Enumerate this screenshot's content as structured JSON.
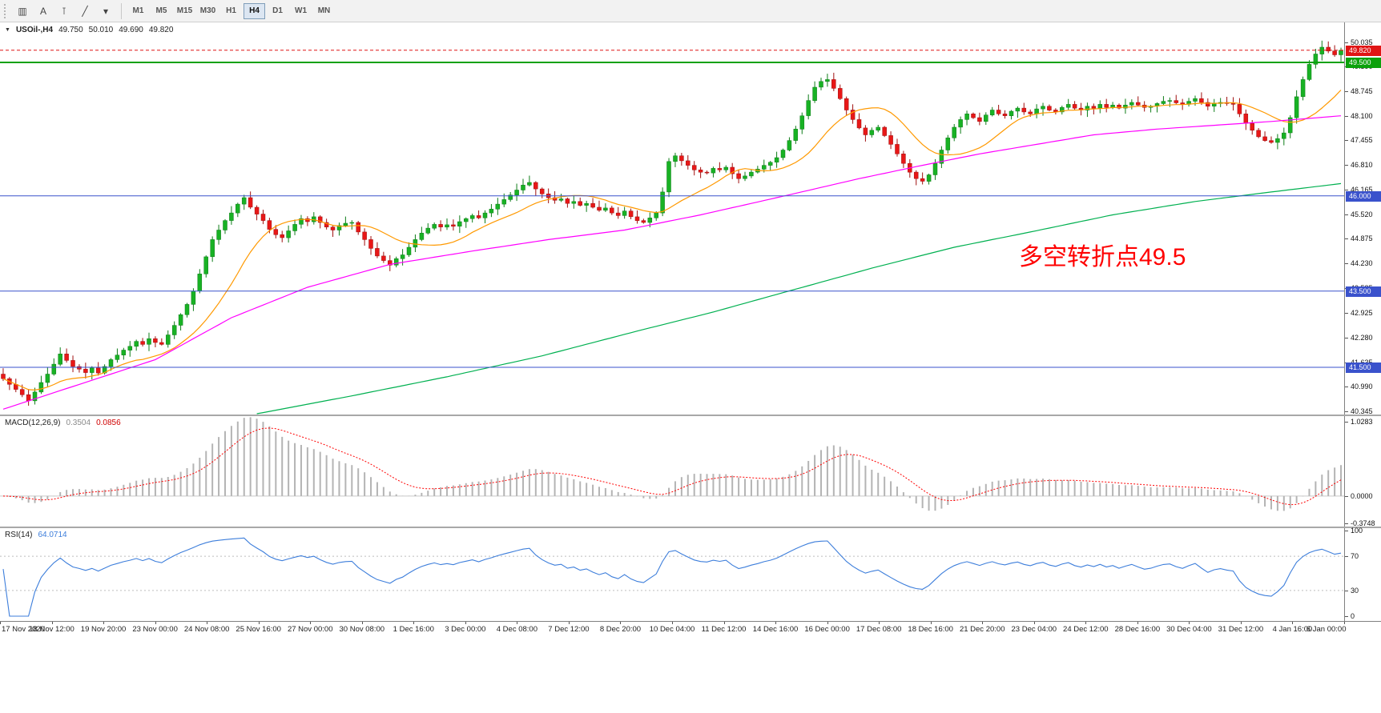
{
  "toolbar": {
    "tools": [
      {
        "name": "chart-window-button",
        "glyph": "▥"
      },
      {
        "name": "text-label-tool-button",
        "glyph": "A"
      },
      {
        "name": "vertical-line-tool-button",
        "glyph": "⊺"
      },
      {
        "name": "trendline-tool-button",
        "glyph": "╱"
      },
      {
        "name": "drawing-tools-dropdown-button",
        "glyph": "▾"
      }
    ],
    "timeframes": [
      {
        "label": "M1",
        "active": false
      },
      {
        "label": "M5",
        "active": false
      },
      {
        "label": "M15",
        "active": false
      },
      {
        "label": "M30",
        "active": false
      },
      {
        "label": "H1",
        "active": false
      },
      {
        "label": "H4",
        "active": true
      },
      {
        "label": "D1",
        "active": false
      },
      {
        "label": "W1",
        "active": false
      },
      {
        "label": "MN",
        "active": false
      }
    ]
  },
  "main_chart": {
    "dropdown_glyph": "▼",
    "symbol_label": "USOil-,H4",
    "ohlc": {
      "open": "49.750",
      "high": "50.010",
      "low": "49.690",
      "close": "49.820"
    },
    "annotation": {
      "text": "多空转折点49.5",
      "color": "#ff0000"
    },
    "current_price": {
      "value": "49.820",
      "color": "#e01515"
    }
  },
  "chart_data": {
    "type": "candlestick",
    "symbol": "USOil",
    "timeframe": "H4",
    "title": "USOil-,H4 49.750 50.010 49.690 49.820",
    "closes": [
      41.2,
      41.05,
      40.92,
      40.78,
      40.62,
      40.85,
      41.1,
      41.32,
      41.58,
      41.85,
      41.68,
      41.52,
      41.45,
      41.36,
      41.48,
      41.35,
      41.52,
      41.7,
      41.82,
      41.95,
      42.05,
      42.18,
      42.1,
      42.25,
      42.15,
      42.1,
      42.35,
      42.6,
      42.88,
      43.15,
      43.5,
      43.95,
      44.4,
      44.85,
      45.1,
      45.35,
      45.55,
      45.78,
      45.95,
      45.7,
      45.52,
      45.35,
      45.12,
      44.98,
      44.9,
      45.08,
      45.25,
      45.4,
      45.32,
      45.45,
      45.3,
      45.18,
      45.1,
      45.22,
      45.28,
      45.3,
      45.05,
      44.85,
      44.62,
      44.42,
      44.3,
      44.18,
      44.35,
      44.45,
      44.65,
      44.85,
      45.02,
      45.15,
      45.25,
      45.18,
      45.24,
      45.2,
      45.32,
      45.4,
      45.48,
      45.42,
      45.55,
      45.65,
      45.78,
      45.9,
      46.02,
      46.15,
      46.28,
      46.35,
      46.18,
      46.05,
      45.95,
      45.88,
      45.92,
      45.8,
      45.85,
      45.75,
      45.8,
      45.7,
      45.62,
      45.68,
      45.55,
      45.48,
      45.6,
      45.45,
      45.35,
      45.3,
      45.42,
      45.55,
      46.1,
      46.9,
      47.05,
      46.92,
      46.8,
      46.68,
      46.62,
      46.6,
      46.72,
      46.68,
      46.75,
      46.58,
      46.45,
      46.52,
      46.62,
      46.7,
      46.8,
      46.88,
      47.0,
      47.2,
      47.45,
      47.75,
      48.1,
      48.5,
      48.85,
      49.0,
      49.05,
      48.82,
      48.55,
      48.25,
      48.0,
      47.78,
      47.6,
      47.72,
      47.8,
      47.58,
      47.35,
      47.1,
      46.85,
      46.62,
      46.45,
      46.38,
      46.55,
      46.85,
      47.2,
      47.52,
      47.8,
      48.0,
      48.15,
      48.05,
      47.95,
      48.12,
      48.25,
      48.15,
      48.1,
      48.22,
      48.3,
      48.2,
      48.15,
      48.28,
      48.35,
      48.25,
      48.2,
      48.32,
      48.4,
      48.3,
      48.25,
      48.35,
      48.3,
      48.4,
      48.32,
      48.38,
      48.3,
      48.38,
      48.45,
      48.38,
      48.32,
      48.35,
      48.42,
      48.48,
      48.5,
      48.44,
      48.4,
      48.48,
      48.55,
      48.45,
      48.35,
      48.42,
      48.45,
      48.42,
      48.4,
      48.15,
      47.9,
      47.72,
      47.55,
      47.45,
      47.4,
      47.5,
      47.65,
      48.05,
      48.6,
      49.05,
      49.45,
      49.72,
      49.9,
      49.8,
      49.7,
      49.82
    ],
    "x_labels": [
      "17 Nov 2020",
      "18 Nov 12:00",
      "19 Nov 20:00",
      "23 Nov 00:00",
      "24 Nov 08:00",
      "25 Nov 16:00",
      "27 Nov 00:00",
      "30 Nov 08:00",
      "1 Dec 16:00",
      "3 Dec 00:00",
      "4 Dec 08:00",
      "7 Dec 12:00",
      "8 Dec 20:00",
      "10 Dec 04:00",
      "11 Dec 12:00",
      "14 Dec 16:00",
      "16 Dec 00:00",
      "17 Dec 08:00",
      "18 Dec 16:00",
      "21 Dec 20:00",
      "23 Dec 04:00",
      "24 Dec 12:00",
      "28 Dec 16:00",
      "30 Dec 04:00",
      "31 Dec 12:00",
      "4 Jan 16:00",
      "6 Jan 00:00"
    ],
    "price_axis": {
      "view_max": 50.55,
      "view_min": 40.26,
      "ticks": [
        "50.035",
        "49.390",
        "48.745",
        "48.100",
        "47.455",
        "46.810",
        "46.165",
        "45.520",
        "44.875",
        "44.230",
        "43.585",
        "42.925",
        "42.280",
        "41.635",
        "40.990",
        "40.345"
      ]
    },
    "levels": [
      {
        "label": "49.500",
        "price": 49.5,
        "color": "#0ca10c",
        "width": 2
      },
      {
        "label": "46.000",
        "price": 46.0,
        "color": "#3a52cc",
        "width": 1
      },
      {
        "label": "43.500",
        "price": 43.5,
        "color": "#3a52cc",
        "width": 1
      },
      {
        "label": "41.500",
        "price": 41.5,
        "color": "#3a52cc",
        "width": 1
      }
    ],
    "ma_fast_period": 13,
    "ma_mid_anchors": [
      [
        0,
        40.4
      ],
      [
        12,
        41.05
      ],
      [
        24,
        41.7
      ],
      [
        36,
        42.8
      ],
      [
        48,
        43.6
      ],
      [
        61,
        44.2
      ],
      [
        74,
        44.55
      ],
      [
        86,
        44.85
      ],
      [
        98,
        45.1
      ],
      [
        110,
        45.5
      ],
      [
        122,
        45.95
      ],
      [
        135,
        46.45
      ],
      [
        145,
        46.8
      ],
      [
        154,
        47.1
      ],
      [
        163,
        47.35
      ],
      [
        172,
        47.6
      ],
      [
        182,
        47.75
      ],
      [
        191,
        47.85
      ],
      [
        200,
        47.95
      ],
      [
        211,
        48.1
      ]
    ],
    "ma_slow_anchors": [
      [
        40,
        40.28
      ],
      [
        55,
        40.75
      ],
      [
        70,
        41.25
      ],
      [
        85,
        41.8
      ],
      [
        100,
        42.45
      ],
      [
        112,
        42.95
      ],
      [
        125,
        43.55
      ],
      [
        137,
        44.1
      ],
      [
        150,
        44.65
      ],
      [
        162,
        45.05
      ],
      [
        175,
        45.5
      ],
      [
        188,
        45.85
      ],
      [
        200,
        46.1
      ],
      [
        211,
        46.32
      ]
    ],
    "colors": {
      "up": "#18b224",
      "up_dark": "#0e7d18",
      "down": "#e81717",
      "down_dark": "#a01010",
      "ma_fast": "#ff9900",
      "ma_mid": "#ff00ff",
      "ma_slow": "#00b050"
    }
  },
  "macd": {
    "label": "MACD(12,26,9)",
    "value_main": "0.3504",
    "value_signal": "0.0856",
    "params": {
      "fast": 12,
      "slow": 26,
      "signal": 9
    },
    "axis_labels": [
      "1.0283",
      "0.0000",
      "-0.3748"
    ],
    "colors": {
      "histogram": "#b4b4b4",
      "signal": "#ff0000"
    }
  },
  "rsi": {
    "label": "RSI(14)",
    "value": "64.0714",
    "period": 14,
    "levels": [
      70,
      30
    ],
    "axis_labels": [
      "100",
      "70",
      "30",
      "0"
    ],
    "color": "#3d7edb"
  }
}
